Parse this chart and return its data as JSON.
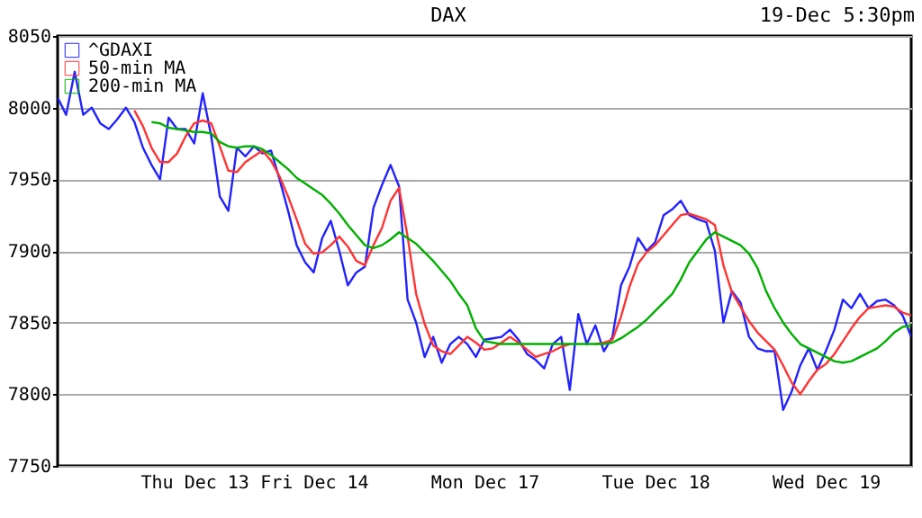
{
  "chart_data": {
    "type": "line",
    "title": "DAX",
    "annotations": [
      "19-Dec 5:30pm"
    ],
    "categories": [
      null,
      null,
      null,
      null,
      null,
      null,
      null,
      null,
      null,
      null,
      null,
      null,
      null,
      null,
      null,
      null,
      "Thu Dec 13",
      null,
      null,
      null,
      null,
      null,
      null,
      null,
      null,
      null,
      null,
      null,
      null,
      null,
      "Fri Dec 14",
      null,
      null,
      null,
      null,
      null,
      null,
      null,
      null,
      null,
      null,
      null,
      null,
      null,
      null,
      null,
      null,
      null,
      null,
      null,
      "Mon Dec 17",
      null,
      null,
      null,
      null,
      null,
      null,
      null,
      null,
      null,
      null,
      null,
      null,
      null,
      null,
      null,
      null,
      null,
      null,
      null,
      "Tue Dec 18",
      null,
      null,
      null,
      null,
      null,
      null,
      null,
      null,
      null,
      null,
      null,
      null,
      null,
      null,
      null,
      null,
      null,
      null,
      null,
      "Wed Dec 19",
      null,
      null,
      null,
      null,
      null,
      null,
      null,
      null,
      null,
      null
    ],
    "ylim": [
      7750,
      8050
    ],
    "yticks": [
      7750,
      7800,
      7850,
      7900,
      7950,
      8000,
      8050
    ],
    "grid": "y",
    "legend": "top left",
    "series": [
      {
        "name": "^GDAXI",
        "color": "#2222ff",
        "values": [
          8007,
          7995,
          8025,
          7995,
          8000,
          7989,
          7985,
          7992,
          8000,
          7990,
          7972,
          7960,
          7950,
          7993,
          7985,
          7985,
          7975,
          8010,
          7980,
          7938,
          7928,
          7972,
          7966,
          7973,
          7968,
          7970,
          7950,
          7928,
          7904,
          7892,
          7885,
          7909,
          7921,
          7900,
          7876,
          7885,
          7889,
          7930,
          7946,
          7960,
          7945,
          7866,
          7850,
          7826,
          7840,
          7822,
          7835,
          7840,
          7835,
          7826,
          7838,
          7839,
          7840,
          7845,
          7838,
          7828,
          7824,
          7818,
          7835,
          7840,
          7803,
          7856,
          7835,
          7848,
          7830,
          7840,
          7876,
          7889,
          7909,
          7900,
          7906,
          7925,
          7929,
          7935,
          7925,
          7922,
          7920,
          7900,
          7850,
          7872,
          7864,
          7840,
          7832,
          7830,
          7830,
          7789,
          7802,
          7820,
          7832,
          7817,
          7830,
          7845,
          7866,
          7860,
          7870,
          7860,
          7865,
          7866,
          7862,
          7855,
          7840
        ]
      },
      {
        "name": "50-min MA",
        "color": "#ff3333",
        "values": [
          null,
          null,
          null,
          null,
          null,
          null,
          null,
          null,
          null,
          7998,
          7987,
          7972,
          7962,
          7962,
          7968,
          7980,
          7989,
          7991,
          7989,
          7973,
          7956,
          7955,
          7962,
          7966,
          7970,
          7963,
          7952,
          7938,
          7922,
          7905,
          7898,
          7899,
          7904,
          7910,
          7903,
          7893,
          7890,
          7904,
          7916,
          7935,
          7944,
          7910,
          7870,
          7849,
          7834,
          7830,
          7828,
          7834,
          7840,
          7836,
          7831,
          7832,
          7836,
          7840,
          7836,
          7831,
          7826,
          7828,
          7830,
          7833,
          7835,
          null,
          null,
          7835,
          7836,
          7838,
          7854,
          7875,
          7891,
          7899,
          7904,
          7911,
          7918,
          7925,
          7926,
          7924,
          7922,
          7918,
          7890,
          7871,
          7861,
          7851,
          7843,
          7837,
          7831,
          7820,
          7808,
          7800,
          7809,
          7817,
          7821,
          7828,
          7837,
          7846,
          7854,
          7860,
          7861,
          7862,
          7861,
          7857,
          7855
        ]
      },
      {
        "name": "200-min MA",
        "color": "#00b000",
        "values": [
          null,
          null,
          null,
          null,
          null,
          null,
          null,
          null,
          null,
          null,
          null,
          7990,
          7989,
          7986,
          7985,
          7984,
          7983,
          7983,
          7982,
          7976,
          7973,
          7972,
          7973,
          7973,
          7971,
          7967,
          7962,
          7957,
          7951,
          7947,
          7943,
          7939,
          7933,
          7926,
          7918,
          7911,
          7904,
          7902,
          7904,
          7908,
          7913,
          7909,
          7905,
          7899,
          7893,
          7886,
          7879,
          7870,
          7862,
          7846,
          7837,
          7836,
          7835,
          7835,
          7835,
          7835,
          7835,
          7835,
          7835,
          7835,
          7835,
          7835,
          7835,
          7835,
          7835,
          7836,
          7839,
          7843,
          7847,
          7852,
          7858,
          7864,
          7870,
          7880,
          7892,
          7900,
          7908,
          7913,
          7910,
          7907,
          7904,
          7898,
          7888,
          7872,
          7860,
          7850,
          7842,
          7835,
          7832,
          7829,
          7826,
          7823,
          7822,
          7823,
          7826,
          7829,
          7832,
          7837,
          7843,
          7847,
          7848
        ]
      }
    ]
  }
}
